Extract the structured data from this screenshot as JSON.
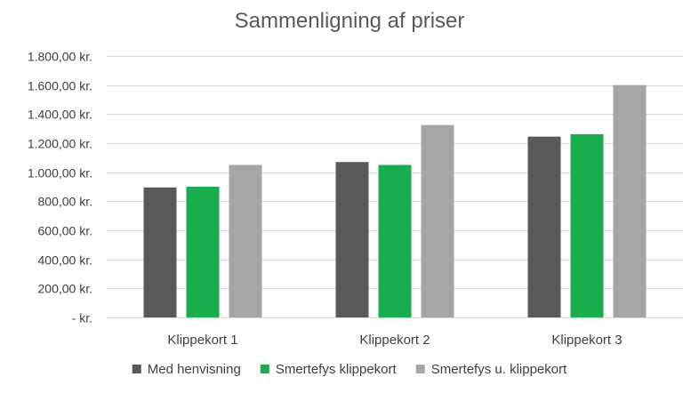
{
  "chart_data": {
    "type": "bar",
    "title": "Sammenligning af priser",
    "categories": [
      "Klippekort 1",
      "Klippekort 2",
      "Klippekort 3"
    ],
    "series": [
      {
        "name": "Med henvisning",
        "color": "#595959",
        "values": [
          895,
          1070,
          1245
        ]
      },
      {
        "name": "Smertefys klippekort",
        "color": "#19AD50",
        "values": [
          900,
          1050,
          1262
        ]
      },
      {
        "name": "Smertefys u. klippekort",
        "color": "#A6A6A6",
        "values": [
          1050,
          1325,
          1600
        ]
      }
    ],
    "y_ticks": [
      {
        "value": 0,
        "label": "-   kr."
      },
      {
        "value": 200,
        "label": "200,00 kr."
      },
      {
        "value": 400,
        "label": "400,00 kr."
      },
      {
        "value": 600,
        "label": "600,00 kr."
      },
      {
        "value": 800,
        "label": "800,00 kr."
      },
      {
        "value": 1000,
        "label": "1.000,00 kr."
      },
      {
        "value": 1200,
        "label": "1.200,00 kr."
      },
      {
        "value": 1400,
        "label": "1.400,00 kr."
      },
      {
        "value": 1600,
        "label": "1.600,00 kr."
      },
      {
        "value": 1800,
        "label": "1.800,00 kr."
      }
    ],
    "ylim": [
      0,
      1800
    ],
    "grid": true,
    "legend_position": "bottom"
  }
}
